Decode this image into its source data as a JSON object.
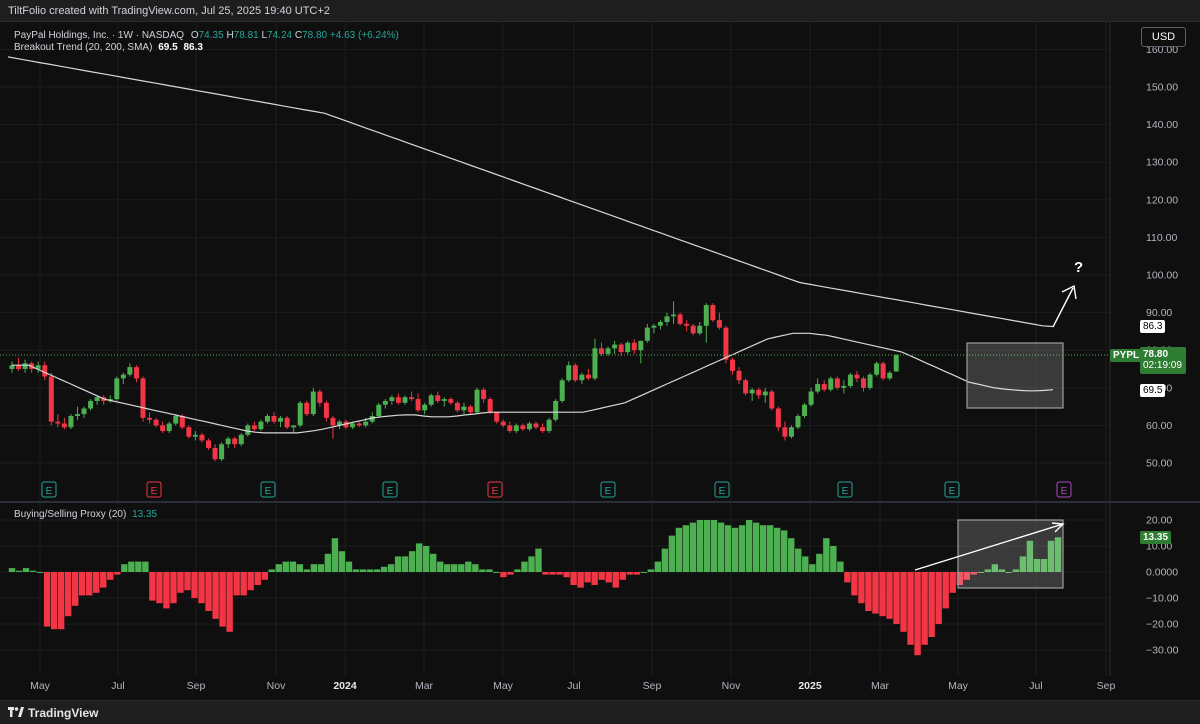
{
  "topbar": {
    "text": "TiltFolio created with TradingView.com, Jul 25, 2025 19:40 UTC+2"
  },
  "header": {
    "symbol": "PayPal Holdings, Inc. · 1W · NASDAQ",
    "o_label": "O",
    "o_value": "74.35",
    "h_label": "H",
    "h_value": "78.81",
    "l_label": "L",
    "l_value": "74.24",
    "c_label": "C",
    "c_value": "78.80",
    "change": "+4.63 (+6.24%)",
    "indicator": "Breakout Trend (20, 200, SMA)",
    "indicator_v1": "69.5",
    "indicator_v2": "86.3"
  },
  "currency": "USD",
  "price_axis": {
    "ticks": [
      "160.00",
      "150.00",
      "140.00",
      "130.00",
      "120.00",
      "110.00",
      "100.00",
      "90.00",
      "80.00",
      "70.00",
      "60.00",
      "50.00"
    ]
  },
  "price_tags": {
    "sma200": "86.3",
    "symbol": "PYPL",
    "last_price": "78.80",
    "countdown": "02:19:09",
    "sma20": "69.5"
  },
  "earnings_markers": [
    "E",
    "E",
    "E",
    "E",
    "E",
    "E",
    "E",
    "E",
    "E",
    "E",
    "E",
    "E"
  ],
  "annotation": {
    "question": "?"
  },
  "oscillator": {
    "label": "Buying/Selling Proxy (20)",
    "value": "13.35",
    "ticks": [
      "20.00",
      "10.00",
      "0.0000",
      "−10.00",
      "−20.00",
      "−30.00"
    ],
    "tag": "13.35"
  },
  "time_axis": [
    "May",
    "Jul",
    "Sep",
    "Nov",
    "2024",
    "Mar",
    "May",
    "Jul",
    "Sep",
    "Nov",
    "2025",
    "Mar",
    "May",
    "Jul",
    "Sep"
  ],
  "footer": {
    "brand": "TradingView"
  },
  "colors": {
    "up": "#4caf50",
    "down": "#f23645",
    "sma": "#d8d8d8",
    "bg": "#0f0f0f",
    "tag_green": "#2e7d32",
    "earnings_up": "#26a69a",
    "earnings_down": "#f23645",
    "earnings_future": "#ab47bc"
  },
  "chart_data": [
    {
      "type": "candlestick",
      "title": "PayPal Holdings, Inc. · 1W · NASDAQ",
      "ylim": [
        45,
        162
      ],
      "x_start": "2023-04-17",
      "interval": "1W",
      "ohlc": [
        [
          75.0,
          77.0,
          74.0,
          76.0
        ],
        [
          76.0,
          78.0,
          74.5,
          75.0
        ],
        [
          75.0,
          77.5,
          74.0,
          76.5
        ],
        [
          76.5,
          77.0,
          74.0,
          75.0
        ],
        [
          75.0,
          77.0,
          74.0,
          76.0
        ],
        [
          76.0,
          77.0,
          72.0,
          73.0
        ],
        [
          73.0,
          74.0,
          60.0,
          61.0
        ],
        [
          61.0,
          63.0,
          59.5,
          60.5
        ],
        [
          60.5,
          62.0,
          59.0,
          59.5
        ],
        [
          59.5,
          63.0,
          59.0,
          62.5
        ],
        [
          62.5,
          65.0,
          61.5,
          63.0
        ],
        [
          63.0,
          65.0,
          62.0,
          64.5
        ],
        [
          64.5,
          67.0,
          64.0,
          66.5
        ],
        [
          66.5,
          68.0,
          65.5,
          67.5
        ],
        [
          67.5,
          68.0,
          65.5,
          66.5
        ],
        [
          66.5,
          68.0,
          66.0,
          67.0
        ],
        [
          67.0,
          73.0,
          66.5,
          72.5
        ],
        [
          72.5,
          74.0,
          71.0,
          73.5
        ],
        [
          73.5,
          76.5,
          73.0,
          75.5
        ],
        [
          75.5,
          76.0,
          71.5,
          72.5
        ],
        [
          72.5,
          73.0,
          61.0,
          62.0
        ],
        [
          62.0,
          63.5,
          60.5,
          61.5
        ],
        [
          61.5,
          62.0,
          59.5,
          60.0
        ],
        [
          60.0,
          61.0,
          58.0,
          58.5
        ],
        [
          58.5,
          61.0,
          58.0,
          60.5
        ],
        [
          60.5,
          63.0,
          60.0,
          62.5
        ],
        [
          62.5,
          63.0,
          59.0,
          59.5
        ],
        [
          59.5,
          60.0,
          56.5,
          57.0
        ],
        [
          57.0,
          58.5,
          56.0,
          57.5
        ],
        [
          57.5,
          58.0,
          55.5,
          56.0
        ],
        [
          56.0,
          56.5,
          53.5,
          54.0
        ],
        [
          54.0,
          55.0,
          50.5,
          51.0
        ],
        [
          51.0,
          55.5,
          50.5,
          55.0
        ],
        [
          55.0,
          57.0,
          54.0,
          56.5
        ],
        [
          56.5,
          57.0,
          54.0,
          55.0
        ],
        [
          55.0,
          58.0,
          54.5,
          57.5
        ],
        [
          57.5,
          60.5,
          57.0,
          60.0
        ],
        [
          60.0,
          61.0,
          58.5,
          59.0
        ],
        [
          59.0,
          61.5,
          58.5,
          61.0
        ],
        [
          61.0,
          63.0,
          60.5,
          62.5
        ],
        [
          62.5,
          63.5,
          60.5,
          61.0
        ],
        [
          61.0,
          62.5,
          59.5,
          62.0
        ],
        [
          62.0,
          62.5,
          59.0,
          59.5
        ],
        [
          59.5,
          60.0,
          58.0,
          60.0
        ],
        [
          60.0,
          66.5,
          59.5,
          66.0
        ],
        [
          66.0,
          66.5,
          62.5,
          63.0
        ],
        [
          63.0,
          70.0,
          62.5,
          69.0
        ],
        [
          69.0,
          69.5,
          65.0,
          66.0
        ],
        [
          66.0,
          66.5,
          61.0,
          62.0
        ],
        [
          62.0,
          62.5,
          56.5,
          60.0
        ],
        [
          60.0,
          61.5,
          59.0,
          61.0
        ],
        [
          61.0,
          61.5,
          59.0,
          59.5
        ],
        [
          59.5,
          61.0,
          59.0,
          60.5
        ],
        [
          60.5,
          61.0,
          59.5,
          60.0
        ],
        [
          60.0,
          62.0,
          59.5,
          61.0
        ],
        [
          61.0,
          63.5,
          60.5,
          62.5
        ],
        [
          62.5,
          66.0,
          62.0,
          65.5
        ],
        [
          65.5,
          67.0,
          64.5,
          66.5
        ],
        [
          66.5,
          68.0,
          65.5,
          67.5
        ],
        [
          67.5,
          68.5,
          65.5,
          66.0
        ],
        [
          66.0,
          68.0,
          65.5,
          67.5
        ],
        [
          67.5,
          69.0,
          66.5,
          67.0
        ],
        [
          67.0,
          68.5,
          63.5,
          64.0
        ],
        [
          64.0,
          66.0,
          63.0,
          65.5
        ],
        [
          65.5,
          68.5,
          65.0,
          68.0
        ],
        [
          68.0,
          69.0,
          66.0,
          66.5
        ],
        [
          66.5,
          67.5,
          65.0,
          67.0
        ],
        [
          67.0,
          67.5,
          65.5,
          66.0
        ],
        [
          66.0,
          66.5,
          63.5,
          64.0
        ],
        [
          64.0,
          66.0,
          63.0,
          65.0
        ],
        [
          65.0,
          65.5,
          63.0,
          63.5
        ],
        [
          63.5,
          70.0,
          63.0,
          69.5
        ],
        [
          69.5,
          70.0,
          66.0,
          67.0
        ],
        [
          67.0,
          67.5,
          63.0,
          63.5
        ],
        [
          63.5,
          63.5,
          60.5,
          61.0
        ],
        [
          61.0,
          61.5,
          59.5,
          60.0
        ],
        [
          60.0,
          61.0,
          58.0,
          58.5
        ],
        [
          58.5,
          60.5,
          58.0,
          60.0
        ],
        [
          60.0,
          60.5,
          58.5,
          59.0
        ],
        [
          59.0,
          61.0,
          58.5,
          60.5
        ],
        [
          60.5,
          61.0,
          59.0,
          59.5
        ],
        [
          59.5,
          60.5,
          58.0,
          58.5
        ],
        [
          58.5,
          62.0,
          58.0,
          61.5
        ],
        [
          61.5,
          67.0,
          61.0,
          66.5
        ],
        [
          66.5,
          72.5,
          66.0,
          72.0
        ],
        [
          72.0,
          77.0,
          71.5,
          76.0
        ],
        [
          76.0,
          76.5,
          71.5,
          72.0
        ],
        [
          72.0,
          74.0,
          71.0,
          73.5
        ],
        [
          73.5,
          75.0,
          72.0,
          72.5
        ],
        [
          72.5,
          83.0,
          72.0,
          80.5
        ],
        [
          80.5,
          82.0,
          78.5,
          79.0
        ],
        [
          79.0,
          81.0,
          78.5,
          80.5
        ],
        [
          80.5,
          82.5,
          79.0,
          81.5
        ],
        [
          81.5,
          82.0,
          78.5,
          79.5
        ],
        [
          79.5,
          82.5,
          79.0,
          82.0
        ],
        [
          82.0,
          83.0,
          79.0,
          80.0
        ],
        [
          80.0,
          82.5,
          76.5,
          82.5
        ],
        [
          82.5,
          87.0,
          82.0,
          86.0
        ],
        [
          86.0,
          87.0,
          84.5,
          86.5
        ],
        [
          86.5,
          88.0,
          85.5,
          87.5
        ],
        [
          87.5,
          90.0,
          86.5,
          89.0
        ],
        [
          89.0,
          93.0,
          87.0,
          89.5
        ],
        [
          89.5,
          90.0,
          86.5,
          87.0
        ],
        [
          87.0,
          88.0,
          85.0,
          86.5
        ],
        [
          86.5,
          87.0,
          84.0,
          84.5
        ],
        [
          84.5,
          87.5,
          84.0,
          86.5
        ],
        [
          86.5,
          92.5,
          82.0,
          92.0
        ],
        [
          92.0,
          92.5,
          87.5,
          88.0
        ],
        [
          88.0,
          90.0,
          85.5,
          86.0
        ],
        [
          86.0,
          86.5,
          76.5,
          77.5
        ],
        [
          77.5,
          78.0,
          73.5,
          74.5
        ],
        [
          74.5,
          75.5,
          71.0,
          72.0
        ],
        [
          72.0,
          72.5,
          68.0,
          68.5
        ],
        [
          68.5,
          70.0,
          66.5,
          69.5
        ],
        [
          69.5,
          70.0,
          67.0,
          68.0
        ],
        [
          68.0,
          70.0,
          66.0,
          69.0
        ],
        [
          69.0,
          69.5,
          64.0,
          64.5
        ],
        [
          64.5,
          65.0,
          58.5,
          59.5
        ],
        [
          59.5,
          61.0,
          56.0,
          57.0
        ],
        [
          57.0,
          60.0,
          56.5,
          59.5
        ],
        [
          59.5,
          63.0,
          59.0,
          62.5
        ],
        [
          62.5,
          66.0,
          62.0,
          65.5
        ],
        [
          65.5,
          70.0,
          65.0,
          69.0
        ],
        [
          69.0,
          72.5,
          68.5,
          71.0
        ],
        [
          71.0,
          72.0,
          69.0,
          69.5
        ],
        [
          69.5,
          73.0,
          69.0,
          72.5
        ],
        [
          72.5,
          73.0,
          69.5,
          70.0
        ],
        [
          70.0,
          72.0,
          68.5,
          70.5
        ],
        [
          70.5,
          74.0,
          70.0,
          73.5
        ],
        [
          73.5,
          74.5,
          71.5,
          72.5
        ],
        [
          72.5,
          73.0,
          69.0,
          70.0
        ],
        [
          70.0,
          74.0,
          69.5,
          73.5
        ],
        [
          73.5,
          77.0,
          73.0,
          76.5
        ],
        [
          76.5,
          77.0,
          72.0,
          72.5
        ],
        [
          72.5,
          74.5,
          72.0,
          74.0
        ],
        [
          74.35,
          78.81,
          74.24,
          78.8
        ]
      ],
      "sma20_path_values": [
        76,
        76,
        76,
        75,
        74,
        73,
        72,
        71,
        70,
        69,
        68,
        67,
        66.5,
        66,
        65.5,
        65,
        64.5,
        64,
        63.5,
        63,
        62.5,
        62,
        61.5,
        61,
        60.5,
        60,
        59.5,
        59,
        58.5,
        58.2,
        58,
        58,
        58,
        58,
        58,
        58.3,
        58.6,
        59,
        59.5,
        60,
        60.5,
        61,
        61.5,
        62,
        62.3,
        62.5,
        62.7,
        62.8,
        62.8,
        62.5,
        62.3,
        62.3,
        62.3,
        62.5,
        62.8,
        63,
        63.3,
        63.5,
        63.5,
        63.5,
        63.5,
        63.5,
        63.5,
        63.5,
        63.5,
        63.5,
        63.5,
        63.5,
        63.5,
        64,
        64.5,
        65,
        65.5,
        66,
        67,
        68,
        69,
        70,
        71,
        72,
        73,
        74,
        75,
        76,
        77,
        78,
        79,
        80,
        81,
        82,
        83,
        83.5,
        84,
        84.5,
        84.5,
        84.5,
        84.2,
        84,
        83.5,
        83,
        82.5,
        82,
        81.5,
        81,
        80.5,
        80,
        79.5,
        78.5,
        77.5,
        76.5,
        75.5,
        74.5,
        73.5,
        72.5,
        71.5,
        71,
        70.5,
        70,
        69.7,
        69.5,
        69.3,
        69.2,
        69.2,
        69.3,
        69.5
      ],
      "sma200_path_values": [
        158,
        157.5,
        157,
        156.5,
        156,
        155.5,
        155,
        154.5,
        154,
        153.5,
        153,
        152.5,
        152,
        151.5,
        151,
        150.5,
        150,
        149.5,
        149,
        148.5,
        148,
        147.5,
        147,
        146.5,
        146,
        145.5,
        145,
        144.5,
        144,
        143.5,
        143,
        142,
        141,
        140,
        139,
        138,
        137,
        136,
        135,
        134,
        133,
        132,
        131,
        130,
        129,
        128,
        127,
        126,
        125,
        124,
        123,
        122,
        121,
        120,
        119,
        118,
        117,
        116,
        115,
        114,
        113,
        112,
        111,
        110,
        109,
        108,
        107,
        106,
        105,
        104,
        103,
        102,
        101,
        100,
        99,
        98,
        97.5,
        97,
        96.5,
        96,
        95.5,
        95,
        94.5,
        94,
        93.5,
        93,
        92.5,
        92,
        91.5,
        91,
        90.5,
        90,
        89.5,
        89,
        88.5,
        88,
        87.5,
        87,
        86.5,
        86.3
      ],
      "sma20_last": 69.5,
      "sma200_last": 86.3,
      "last_close": 78.8
    },
    {
      "type": "bar",
      "title": "Buying/Selling Proxy (20)",
      "ylim": [
        -34,
        22
      ],
      "values": [
        1.5,
        0.5,
        1.5,
        0.5,
        0,
        -21,
        -22,
        -22,
        -17,
        -13,
        -9,
        -9,
        -8,
        -6,
        -3,
        -1,
        3,
        4,
        4,
        4,
        -11,
        -12,
        -14,
        -12,
        -8,
        -7,
        -10,
        -12,
        -15,
        -18,
        -21,
        -23,
        -9,
        -9,
        -7,
        -5,
        -3,
        1,
        3,
        4,
        4,
        3,
        1,
        3,
        3,
        7,
        13,
        8,
        4,
        1,
        1,
        1,
        1,
        2,
        3,
        6,
        6,
        8,
        11,
        10,
        7,
        4,
        3,
        3,
        3,
        4,
        3,
        1,
        1,
        0,
        -2,
        -1,
        1,
        4,
        6,
        9,
        -1,
        -1,
        -1,
        -2,
        -5,
        -6,
        -4,
        -5,
        -3,
        -4,
        -6,
        -3,
        -1,
        -1,
        0,
        1,
        4,
        9,
        14,
        17,
        18,
        19,
        20,
        20,
        20,
        19,
        18,
        17,
        18,
        20,
        19,
        18,
        18,
        17,
        16,
        13,
        9,
        6,
        3,
        7,
        13,
        10,
        4,
        -4,
        -9,
        -12,
        -15,
        -16,
        -17,
        -18,
        -20,
        -23,
        -28,
        -32,
        -28,
        -25,
        -20,
        -14,
        -8,
        -5,
        -3,
        -1,
        0,
        1,
        3,
        1,
        0,
        1,
        6,
        12,
        5,
        5,
        12,
        13.35
      ]
    }
  ]
}
